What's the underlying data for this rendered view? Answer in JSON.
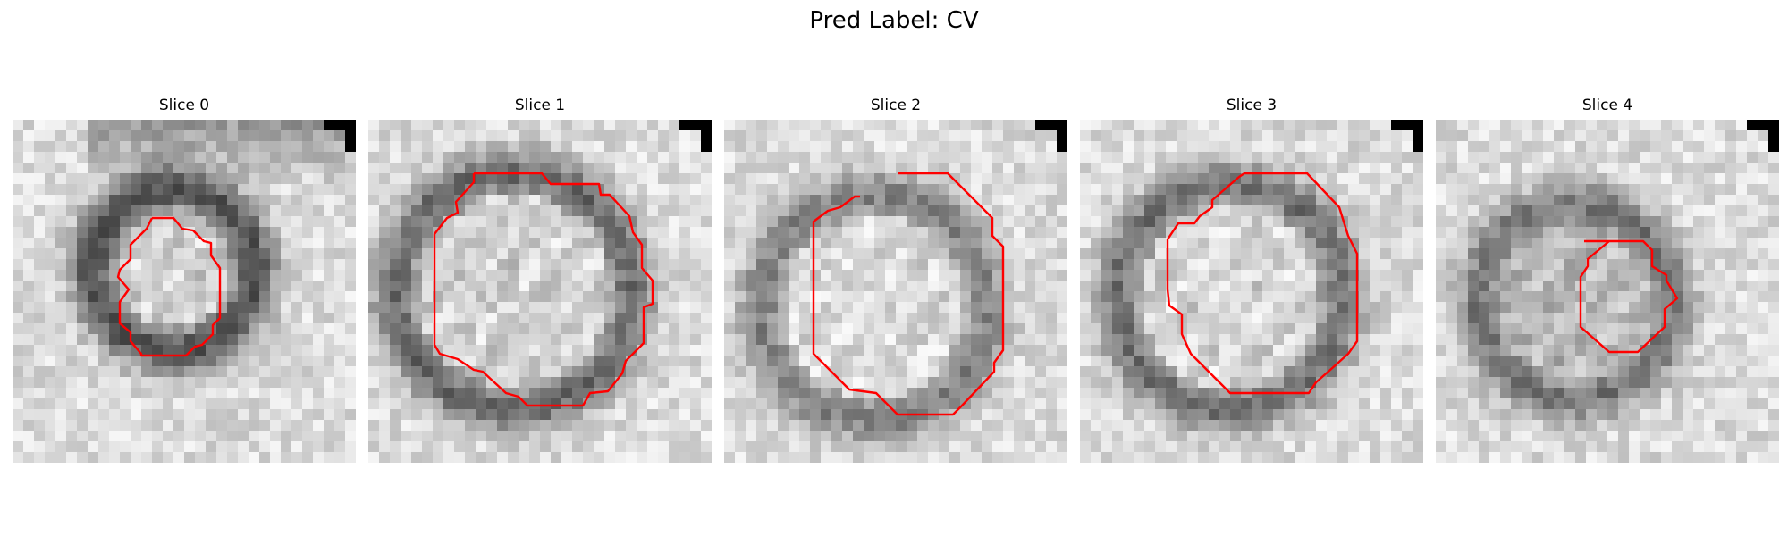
{
  "figure": {
    "title": "Pred Label: CV",
    "contour_color": "#ff0000",
    "panels": [
      {
        "title": "Slice 0"
      },
      {
        "title": "Slice 1"
      },
      {
        "title": "Slice 2"
      },
      {
        "title": "Slice 3"
      },
      {
        "title": "Slice 4"
      }
    ]
  }
}
